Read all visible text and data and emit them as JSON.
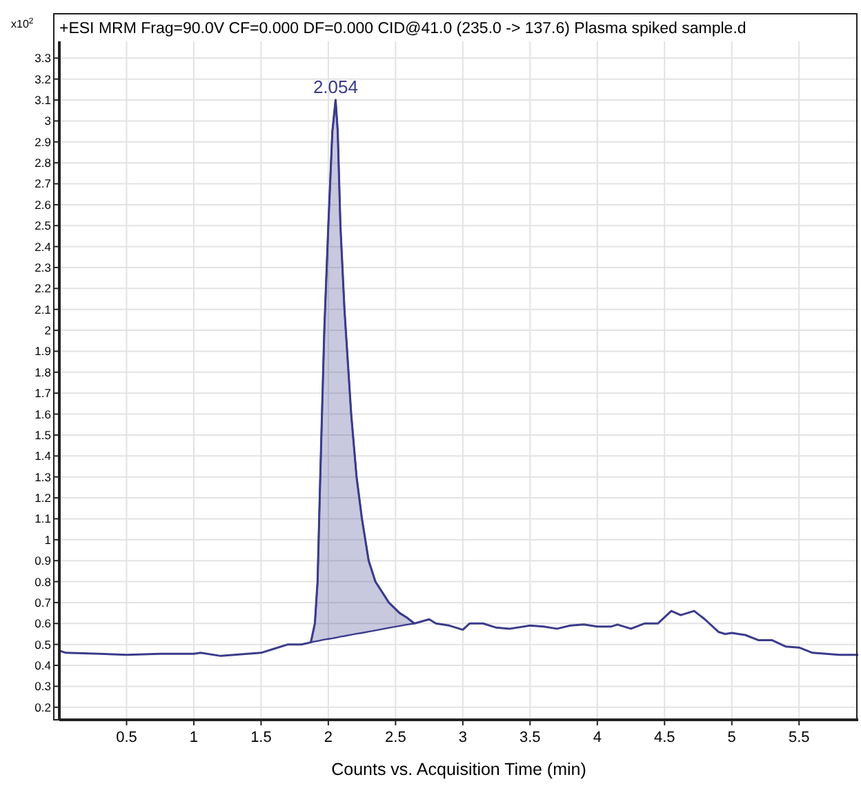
{
  "chart_data": {
    "type": "line",
    "title": "+ESI MRM Frag=90.0V CF=0.000 DF=0.000 CID@41.0 (235.0 -> 137.6) Plasma spiked sample.d",
    "xlabel": "Counts vs. Acquisition Time (min)",
    "ylabel": "x10$^{2}$",
    "xlim": [
      0,
      5.94
    ],
    "ylim": [
      0.14,
      3.38
    ],
    "xticks": [
      0.5,
      1,
      1.5,
      2,
      2.5,
      3,
      3.5,
      4,
      4.5,
      5,
      5.5
    ],
    "yticks": [
      0.2,
      0.3,
      0.4,
      0.5,
      0.6,
      0.7,
      0.8,
      0.9,
      1,
      1.1,
      1.2,
      1.3,
      1.4,
      1.5,
      1.6,
      1.7,
      1.8,
      1.9,
      2,
      2.1,
      2.2,
      2.3,
      2.4,
      2.5,
      2.6,
      2.7,
      2.8,
      2.9,
      3,
      3.1,
      3.2,
      3.3
    ],
    "grid": true,
    "annotations": [
      {
        "text": "2.054",
        "x": 2.054,
        "y": 3.1
      }
    ],
    "series": [
      {
        "color": "#3b3b8c",
        "x": [
          0,
          0.05,
          0.3,
          0.5,
          0.75,
          1.0,
          1.05,
          1.2,
          1.5,
          1.6,
          1.7,
          1.8,
          1.87,
          1.9,
          1.92,
          1.94,
          1.97,
          2.0,
          2.03,
          2.054,
          2.07,
          2.09,
          2.12,
          2.17,
          2.21,
          2.25,
          2.3,
          2.35,
          2.45,
          2.53,
          2.58,
          2.64,
          2.75,
          2.8,
          2.9,
          3.0,
          3.05,
          3.15,
          3.25,
          3.35,
          3.5,
          3.6,
          3.7,
          3.8,
          3.9,
          4.0,
          4.1,
          4.15,
          4.25,
          4.35,
          4.45,
          4.55,
          4.62,
          4.72,
          4.8,
          4.9,
          4.95,
          5.0,
          5.1,
          5.2,
          5.3,
          5.4,
          5.5,
          5.6,
          5.7,
          5.8,
          5.94
        ],
        "values": [
          0.47,
          0.46,
          0.455,
          0.45,
          0.455,
          0.455,
          0.46,
          0.445,
          0.46,
          0.48,
          0.5,
          0.5,
          0.51,
          0.6,
          0.8,
          1.3,
          2.0,
          2.5,
          2.95,
          3.1,
          2.95,
          2.5,
          2.1,
          1.6,
          1.3,
          1.1,
          0.9,
          0.8,
          0.7,
          0.65,
          0.63,
          0.6,
          0.62,
          0.6,
          0.59,
          0.57,
          0.6,
          0.6,
          0.58,
          0.575,
          0.59,
          0.585,
          0.575,
          0.59,
          0.595,
          0.585,
          0.585,
          0.595,
          0.575,
          0.6,
          0.6,
          0.66,
          0.64,
          0.66,
          0.62,
          0.56,
          0.55,
          0.555,
          0.545,
          0.52,
          0.52,
          0.49,
          0.485,
          0.46,
          0.455,
          0.45,
          0.45
        ],
        "lower": [
          null,
          null,
          null,
          null,
          null,
          null,
          null,
          null,
          null,
          null,
          null,
          null,
          0.51,
          0.514,
          0.516,
          0.519,
          0.523,
          0.526,
          0.529,
          0.532,
          0.534,
          0.537,
          0.54,
          0.546,
          0.551,
          0.555,
          0.561,
          0.567,
          0.579,
          0.588,
          0.594,
          0.6,
          null,
          null,
          null,
          null,
          null,
          null,
          null,
          null,
          null,
          null,
          null,
          null,
          null,
          null,
          null,
          null,
          null,
          null,
          null,
          null,
          null,
          null,
          null,
          null,
          null,
          null,
          null,
          null,
          null,
          null,
          null,
          null,
          null,
          null,
          null
        ],
        "upper": [
          null,
          null,
          null,
          null,
          null,
          null,
          null,
          null,
          null,
          null,
          null,
          null,
          0.51,
          0.6,
          0.8,
          1.3,
          2.0,
          2.5,
          2.95,
          3.1,
          2.95,
          2.5,
          2.1,
          1.6,
          1.3,
          1.1,
          0.9,
          0.8,
          0.7,
          0.65,
          0.63,
          0.6,
          null,
          null,
          null,
          null,
          null,
          null,
          null,
          null,
          null,
          null,
          null,
          null,
          null,
          null,
          null,
          null,
          null,
          null,
          null,
          null,
          null,
          null,
          null,
          null,
          null,
          null,
          null,
          null,
          null,
          null,
          null,
          null,
          null,
          null,
          null
        ]
      }
    ]
  }
}
